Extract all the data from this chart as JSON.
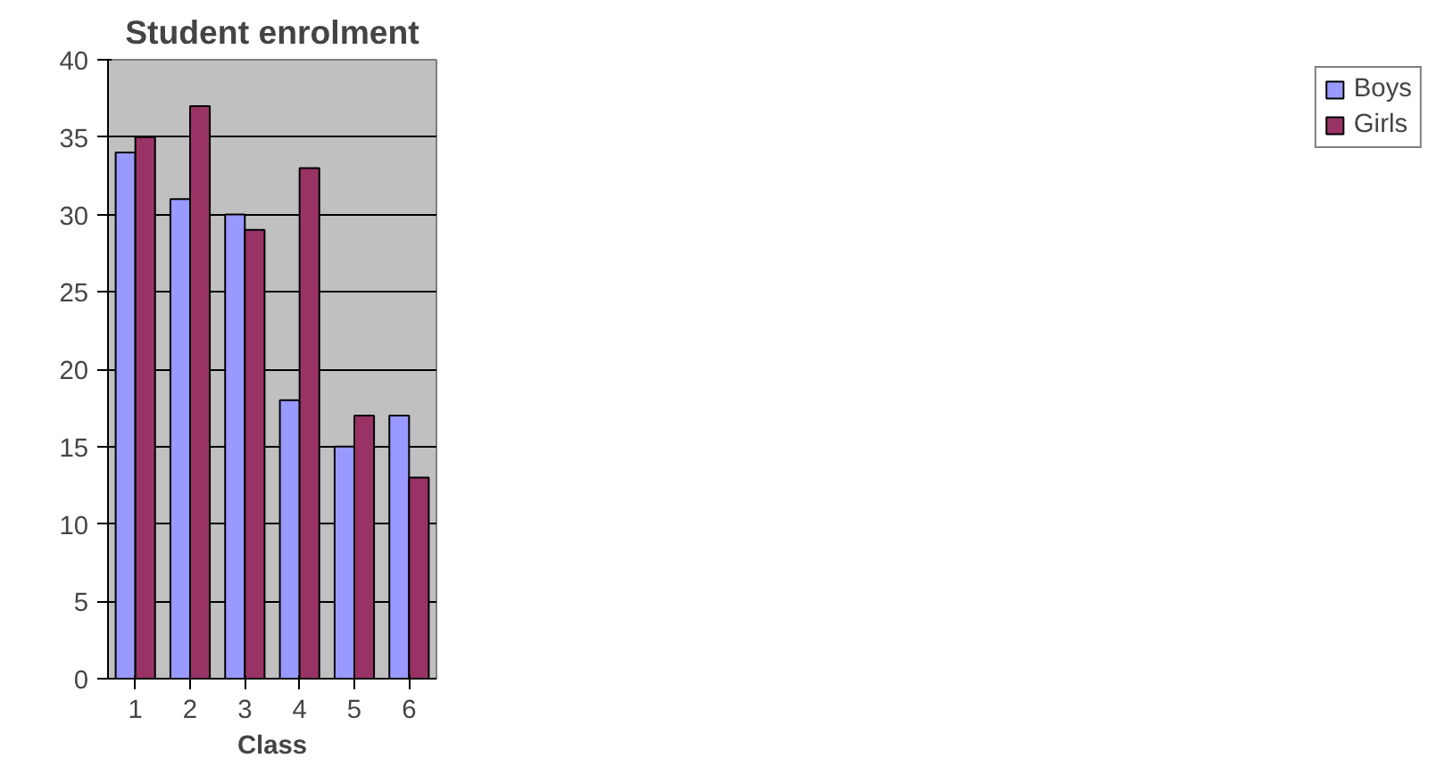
{
  "chart_data": {
    "type": "bar",
    "title": "Student enrolment",
    "xlabel": "Class",
    "categories": [
      "1",
      "2",
      "3",
      "4",
      "5",
      "6"
    ],
    "series": [
      {
        "name": "Boys",
        "color": "#9999ff",
        "values": [
          34,
          31,
          30,
          18,
          15,
          17
        ]
      },
      {
        "name": "Girls",
        "color": "#993366",
        "values": [
          35,
          37,
          29,
          33,
          17,
          13
        ]
      }
    ],
    "ylim": [
      0,
      40
    ],
    "yticks": [
      0,
      5,
      10,
      15,
      20,
      25,
      30,
      35,
      40
    ],
    "grid": "y",
    "legend": "right"
  }
}
